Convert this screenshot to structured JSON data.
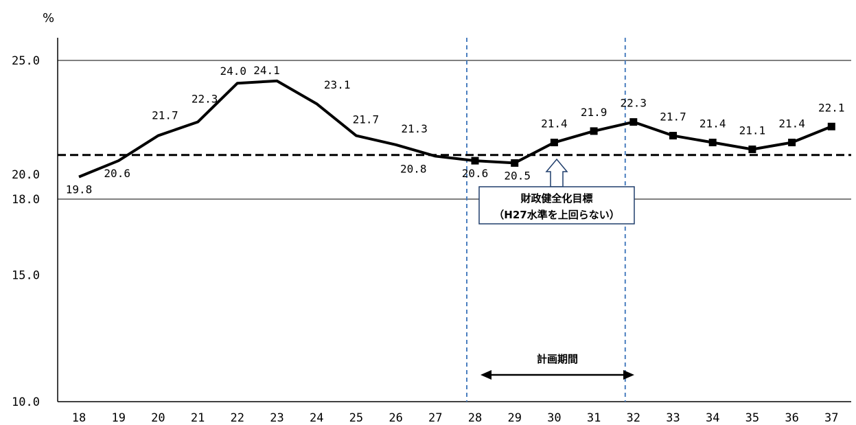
{
  "chart_data": {
    "type": "line",
    "ylabel": "%",
    "categories": [
      "18",
      "19",
      "20",
      "21",
      "22",
      "23",
      "24",
      "25",
      "26",
      "27",
      "28",
      "29",
      "30",
      "31",
      "32",
      "33",
      "34",
      "35",
      "36",
      "37"
    ],
    "values": [
      19.8,
      20.6,
      21.7,
      22.3,
      24.0,
      24.1,
      23.1,
      21.7,
      21.3,
      20.8,
      20.6,
      20.5,
      21.4,
      21.9,
      22.3,
      21.7,
      21.4,
      21.1,
      21.4,
      22.1
    ],
    "data_labels": [
      "19.8",
      "20.6",
      "21.7",
      "22.3",
      "24.0",
      "24.1",
      "23.1",
      "21.7",
      "21.3",
      "20.8",
      "20.6",
      "20.5",
      "21.4",
      "21.9",
      "22.3",
      "21.7",
      "21.4",
      "21.1",
      "21.4",
      "22.1"
    ],
    "marker_start_index": 10,
    "y_ticks": [
      "25.0",
      "20.0",
      "18.0",
      "15.0",
      "10.0"
    ],
    "gridlines": [
      25.0,
      18.0
    ],
    "ylim": [
      10,
      26
    ],
    "target_line": {
      "value": 20.85,
      "style": "dashed"
    },
    "plan_period": {
      "start": "28",
      "end": "32",
      "label": "計画期間"
    },
    "target_annotation": {
      "line1": "財政健全化目標",
      "line2": "（H27水準を上回らない）"
    },
    "line_color": "#000000",
    "plan_line_color": "#4a7ebf"
  }
}
